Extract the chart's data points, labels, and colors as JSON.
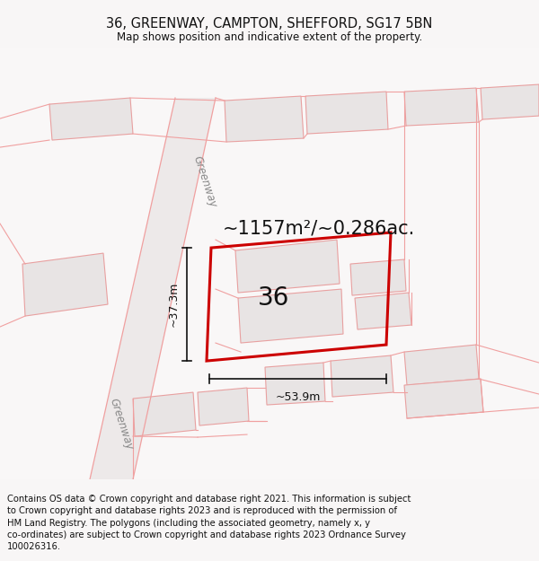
{
  "title": "36, GREENWAY, CAMPTON, SHEFFORD, SG17 5BN",
  "subtitle": "Map shows position and indicative extent of the property.",
  "footer": "Contains OS data © Crown copyright and database right 2021. This information is subject\nto Crown copyright and database rights 2023 and is reproduced with the permission of\nHM Land Registry. The polygons (including the associated geometry, namely x, y\nco-ordinates) are subject to Crown copyright and database rights 2023 Ordnance Survey\n100026316.",
  "area_text": "~1157m²/~0.286ac.",
  "label_36": "36",
  "dim_width": "~53.9m",
  "dim_height": "~37.3m",
  "road_label_upper": "Greenway",
  "road_label_lower": "Greenway",
  "bg_color": "#f8f6f6",
  "map_bg": "#f9f7f7",
  "road_fill": "#ede9e9",
  "plot_edge_color": "#cc0000",
  "building_fill": "#e8e4e4",
  "building_edge": "#e8a0a0",
  "pink_line": "#f0a0a0",
  "dim_color": "#111111",
  "title_fontsize": 10.5,
  "subtitle_fontsize": 8.5,
  "footer_fontsize": 7.2,
  "area_fontsize": 15,
  "label_fontsize": 20,
  "dim_fontsize": 9,
  "road_fontsize": 8.5
}
